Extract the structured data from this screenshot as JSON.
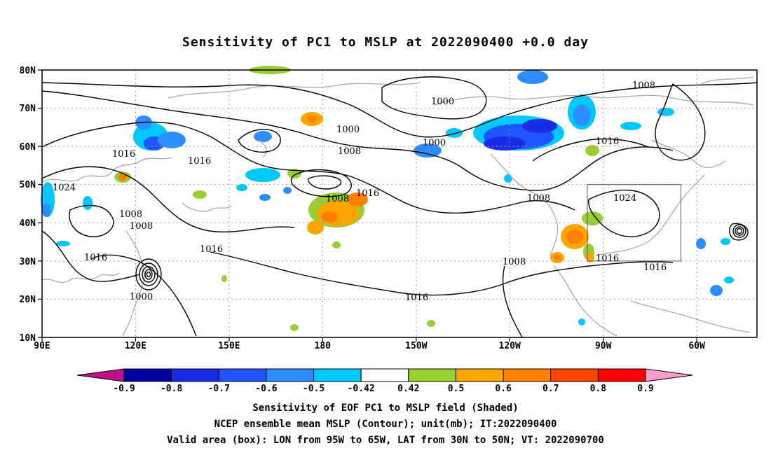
{
  "title": "Sensitivity of PC1 to MSLP at 2022090400 +0.0 day",
  "lat_labels": [
    "80N",
    "70N",
    "60N",
    "50N",
    "40N",
    "30N",
    "20N",
    "10N"
  ],
  "lon_labels": [
    "90E",
    "120E",
    "150E",
    "180",
    "150W",
    "120W",
    "90W",
    "60W"
  ],
  "contour_labels": [
    "1000",
    "1000",
    "1000",
    "1008",
    "1008",
    "1008",
    "1008",
    "1008",
    "1008",
    "1008",
    "1016",
    "1016",
    "1016",
    "1016",
    "1016",
    "1016",
    "1016",
    "1016",
    "1024",
    "1024",
    "1000"
  ],
  "colorbar": {
    "labels": [
      "-0.9",
      "-0.8",
      "-0.7",
      "-0.6",
      "-0.5",
      "-0.42",
      "0.42",
      "0.5",
      "0.6",
      "0.7",
      "0.8",
      "0.9"
    ],
    "colors": [
      "#0000a0",
      "#1a2de6",
      "#1e55ff",
      "#2d8cff",
      "#00c8ff",
      "#ffffff",
      "#9acd32",
      "#ffa500",
      "#ff7f00",
      "#ff4500",
      "#ff0000"
    ],
    "low_color": "#c0108c",
    "high_color": "#ff9ec8"
  },
  "valid_box": {
    "lon_from": "95W",
    "lon_to": "65W",
    "lat_from": "30N",
    "lat_to": "50N"
  },
  "footer": {
    "line1": "Sensitivity of EOF PC1 to MSLP field (Shaded)",
    "line2": "NCEP ensemble mean MSLP (Contour); unit(mb); IT:2022090400",
    "line3": "Valid area (box): LON from 95W to 65W, LAT from 30N to 50N; VT: 2022090700"
  }
}
